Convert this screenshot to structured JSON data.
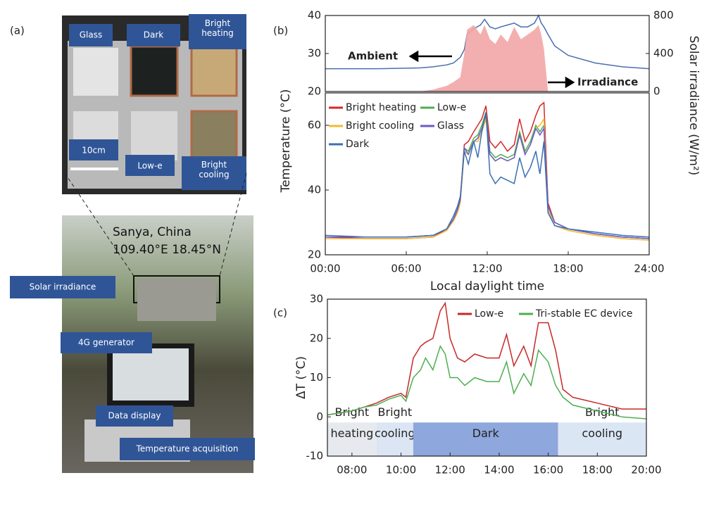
{
  "panel_labels": [
    "(a)",
    "(b)",
    "(c)"
  ],
  "photo": {
    "cells": [
      "Glass",
      "Dark",
      "Bright heating",
      "Low-e",
      "Bright cooling"
    ],
    "scale": "10cm",
    "location": "Sanya, China",
    "coords": "109.40°E 18.45°N",
    "callouts": [
      "Solar irradiance",
      "4G generator",
      "Data display",
      "Temperature acquisition"
    ]
  },
  "chart_data": [
    {
      "type": "line",
      "xlim": [
        0,
        24
      ],
      "ylim": [
        20,
        40
      ],
      "yticks": [
        20,
        30,
        40
      ],
      "y2lim": [
        0,
        800
      ],
      "y2ticks": [
        0,
        400,
        800
      ],
      "y2label": "Solar irradiance (W/m²)",
      "x": [
        0,
        4,
        7,
        8,
        9,
        9.5,
        10,
        10.3,
        10.5,
        11,
        11.5,
        11.8,
        12.2,
        12.6,
        13,
        13.5,
        14,
        14.5,
        15,
        15.5,
        15.8,
        16,
        16.2,
        16.5,
        17,
        18,
        20,
        22,
        24
      ],
      "series": [
        {
          "name": "Ambient",
          "color": "#4a6fb0",
          "values": [
            26,
            26,
            26.2,
            26.5,
            27,
            27.5,
            29,
            31,
            35,
            36.5,
            37.5,
            39,
            37,
            36.5,
            37,
            37.5,
            38,
            37,
            37,
            38,
            40,
            38,
            37,
            35,
            32,
            29.5,
            27.5,
            26.5,
            26
          ]
        },
        {
          "name": "Irradiance",
          "color": "#f2a6a6",
          "axis": "y2",
          "fill": true,
          "values": [
            0,
            0,
            0,
            20,
            60,
            100,
            150,
            400,
            650,
            700,
            600,
            700,
            550,
            500,
            600,
            520,
            680,
            550,
            600,
            650,
            700,
            600,
            450,
            0,
            0,
            0,
            0,
            0,
            0
          ]
        }
      ],
      "annotations": [
        "Ambient",
        "Irradiance"
      ]
    },
    {
      "type": "line",
      "xlim": [
        0,
        24
      ],
      "ylim": [
        20,
        70
      ],
      "yticks": [
        20,
        40,
        60
      ],
      "ylabel": "Temperature (°C)",
      "xlabel": "Local daylight time",
      "xticks": [
        {
          "value": 0,
          "label": "00:00"
        },
        {
          "value": 6,
          "label": "06:00"
        },
        {
          "value": 12,
          "label": "12:00"
        },
        {
          "value": 18,
          "label": "18:00"
        },
        {
          "value": 24,
          "label": "24:00"
        }
      ],
      "x": [
        0,
        3,
        6,
        8,
        9,
        9.5,
        9.8,
        10,
        10.3,
        10.6,
        11,
        11.3,
        11.6,
        11.9,
        12.2,
        12.6,
        13,
        13.5,
        14,
        14.4,
        14.8,
        15.2,
        15.6,
        15.9,
        16.2,
        16.5,
        17,
        18,
        20,
        22,
        24
      ],
      "series": [
        {
          "name": "Bright heating",
          "color": "#d62728",
          "values": [
            25.5,
            25,
            25,
            25.5,
            28,
            31,
            34,
            37,
            54,
            55,
            58,
            60,
            62,
            66,
            55,
            53,
            55,
            52,
            54,
            62,
            55,
            58,
            63,
            66,
            67,
            36,
            30,
            28,
            26.5,
            25.5,
            25
          ]
        },
        {
          "name": "Low-e",
          "color": "#4caf50",
          "values": [
            25.5,
            25.5,
            25.5,
            26,
            28,
            31,
            34,
            37,
            53,
            52,
            56,
            57,
            60,
            64,
            52,
            50,
            51,
            50,
            51,
            58,
            52,
            55,
            60,
            58,
            60,
            35,
            30,
            28,
            26.5,
            25.5,
            25
          ]
        },
        {
          "name": "Bright cooling",
          "color": "#f5b82e",
          "values": [
            25,
            25,
            25,
            25.5,
            27.5,
            30.5,
            33,
            36,
            52,
            51,
            55,
            55,
            58,
            62,
            51,
            49,
            50,
            49,
            50,
            57,
            51,
            54,
            59,
            60,
            62,
            34,
            29,
            27.5,
            26,
            25,
            24.5
          ]
        },
        {
          "name": "Glass",
          "color": "#6a5acd",
          "values": [
            25.5,
            25.5,
            25.5,
            26,
            28,
            31,
            34,
            37,
            53,
            51,
            55,
            56,
            59,
            63,
            51,
            49,
            50,
            49,
            50,
            57,
            51,
            54,
            59,
            57,
            59,
            35,
            30,
            28,
            26.5,
            25.5,
            25
          ]
        },
        {
          "name": "Dark",
          "color": "#3a6fb5",
          "values": [
            26,
            25.5,
            25.5,
            26,
            28,
            32,
            35,
            38,
            52,
            48,
            55,
            50,
            58,
            64,
            45,
            42,
            44,
            43,
            42,
            50,
            44,
            47,
            52,
            45,
            55,
            33,
            29,
            28,
            27,
            26,
            25.5
          ]
        }
      ]
    },
    {
      "type": "line",
      "xlim": [
        7,
        20
      ],
      "ylim": [
        -10,
        30
      ],
      "yticks": [
        -10,
        0,
        10,
        20,
        30
      ],
      "ylabel": "ΔT (°C)",
      "xticks": [
        {
          "value": 8,
          "label": "08:00"
        },
        {
          "value": 10,
          "label": "10:00"
        },
        {
          "value": 12,
          "label": "12:00"
        },
        {
          "value": 14,
          "label": "14:00"
        },
        {
          "value": 16,
          "label": "16:00"
        },
        {
          "value": 18,
          "label": "18:00"
        },
        {
          "value": 20,
          "label": "20:00"
        }
      ],
      "x": [
        7,
        8,
        8.5,
        9,
        9.5,
        10,
        10.2,
        10.5,
        10.8,
        11,
        11.3,
        11.6,
        11.8,
        12,
        12.3,
        12.6,
        13,
        13.5,
        14,
        14.3,
        14.6,
        15,
        15.3,
        15.6,
        16,
        16.3,
        16.6,
        17,
        18,
        19,
        20
      ],
      "series": [
        {
          "name": "Low-e",
          "color": "#c62828",
          "values": [
            0.5,
            1.5,
            2.5,
            3.5,
            5,
            6,
            5,
            15,
            18,
            19,
            20,
            27,
            29,
            20,
            15,
            14,
            16,
            15,
            15,
            21,
            13,
            18,
            13,
            24,
            24,
            17,
            7,
            5,
            3.5,
            2,
            2
          ]
        },
        {
          "name": "Tri-stable EC device",
          "color": "#4caf50",
          "values": [
            0.5,
            1.5,
            2.5,
            3,
            4.5,
            5.5,
            4,
            10,
            12,
            15,
            12,
            18,
            16,
            10,
            10,
            8,
            10,
            9,
            9,
            14,
            6,
            11,
            8,
            17,
            14,
            8,
            5,
            3,
            1.5,
            0,
            -0.5
          ]
        }
      ],
      "bands": [
        {
          "label": [
            "Bright",
            "heating"
          ],
          "start": 7,
          "end": 9,
          "color": "#e6e9ee"
        },
        {
          "label": [
            "Bright",
            "cooling"
          ],
          "start": 9,
          "end": 10.5,
          "color": "#dbe5f3"
        },
        {
          "label": [
            "",
            "Dark"
          ],
          "start": 10.5,
          "end": 16.4,
          "color": "#8ea7dc"
        },
        {
          "label": [
            "Bright",
            "cooling"
          ],
          "start": 16.4,
          "end": 20,
          "color": "#dbe6f4"
        }
      ]
    }
  ]
}
